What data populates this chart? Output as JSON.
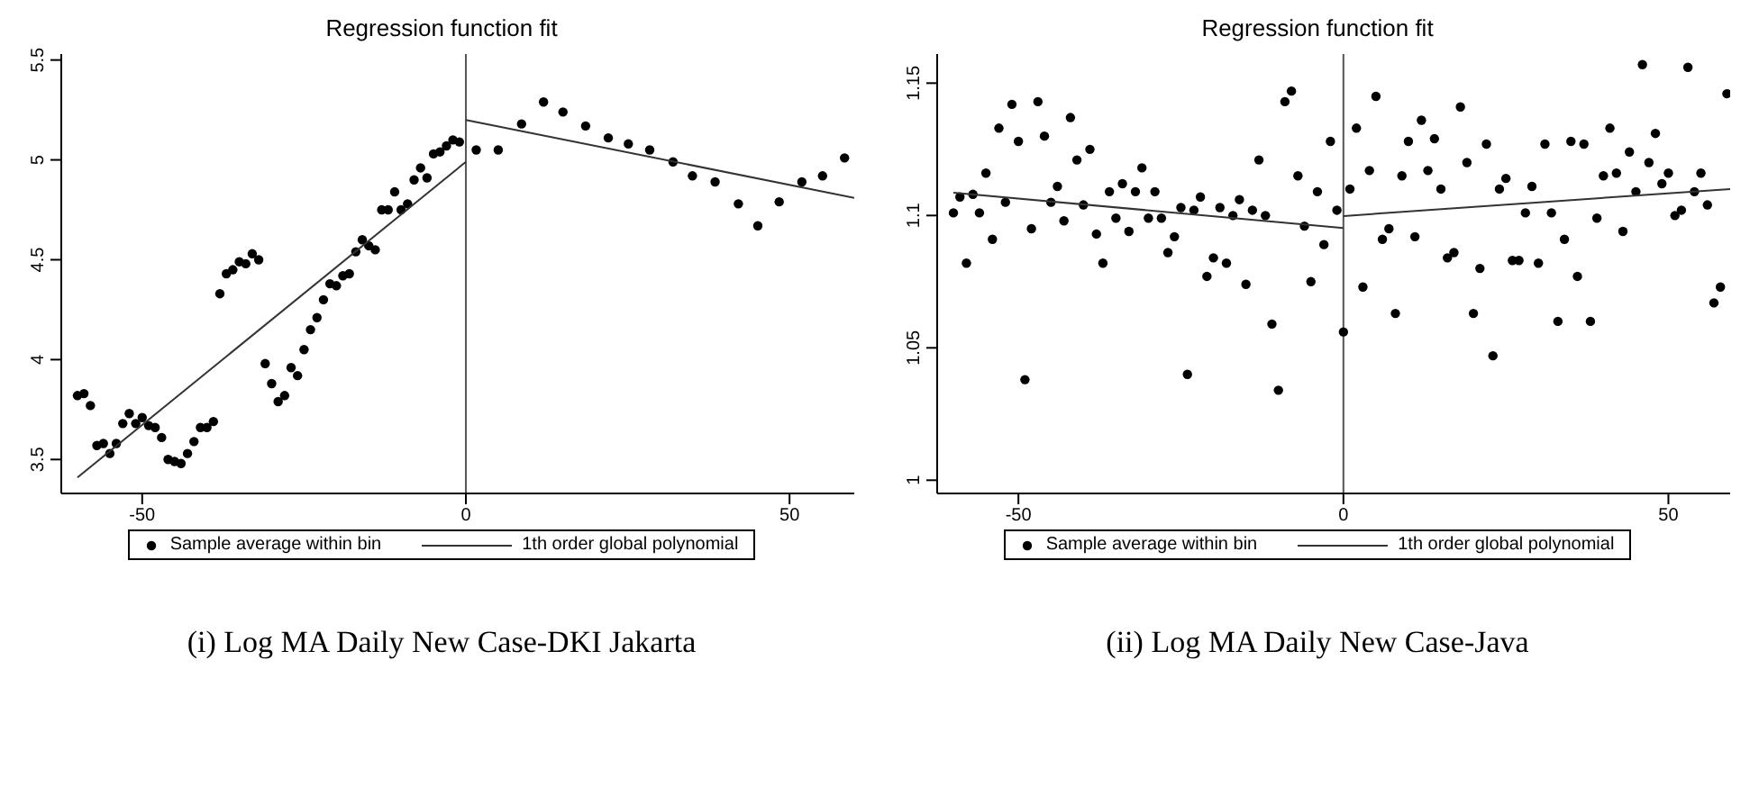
{
  "chart_data": [
    {
      "type": "scatter",
      "title": "Regression function fit",
      "xlim": [
        -62.5,
        60
      ],
      "ylim": [
        3.33,
        5.53
      ],
      "xticks": [
        -50,
        0,
        50
      ],
      "yticks": [
        3.5,
        4,
        4.5,
        5,
        5.5
      ],
      "marker": "circle",
      "legend": "bottom",
      "annotations": [
        "(i) Log MA Daily New Case-DKI Jakarta"
      ],
      "ref_lines": [
        {
          "axis": "x",
          "value": 0,
          "color": "#555555"
        }
      ],
      "series": [
        {
          "name": "Sample average within bin",
          "color": "#000000",
          "x": [
            -60,
            -59,
            -58,
            -57,
            -56,
            -55,
            -54,
            -53,
            -52,
            -51,
            -50,
            -49,
            -48,
            -47,
            -46,
            -45,
            -44,
            -43,
            -42,
            -41,
            -40,
            -39,
            -38,
            -37,
            -36,
            -35,
            -34,
            -33,
            -32,
            -31,
            -30,
            -29,
            -28,
            -27,
            -26,
            -25,
            -24,
            -23,
            -22,
            -21,
            -20,
            -19,
            -18,
            -17,
            -16,
            -15,
            -14,
            -13,
            -12,
            -11,
            -10,
            -9,
            -8,
            -7,
            -6,
            -5,
            -4,
            -3,
            -2,
            -1,
            1.6,
            5.0,
            8.6,
            12.0,
            15.0,
            18.5,
            22.0,
            25.1,
            28.4,
            32.0,
            35.0,
            38.5,
            42.1,
            45.1,
            48.4,
            51.9,
            55.1,
            58.5
          ],
          "values": [
            3.82,
            3.83,
            3.77,
            3.57,
            3.58,
            3.53,
            3.58,
            3.68,
            3.73,
            3.68,
            3.71,
            3.67,
            3.66,
            3.61,
            3.5,
            3.49,
            3.48,
            3.53,
            3.59,
            3.66,
            3.66,
            3.69,
            4.33,
            4.43,
            4.45,
            4.49,
            4.48,
            4.53,
            4.5,
            3.98,
            3.88,
            3.79,
            3.82,
            3.96,
            3.92,
            4.05,
            4.15,
            4.21,
            4.3,
            4.38,
            4.37,
            4.42,
            4.43,
            4.54,
            4.6,
            4.57,
            4.55,
            4.75,
            4.75,
            4.84,
            4.75,
            4.78,
            4.9,
            4.96,
            4.91,
            5.03,
            5.04,
            5.07,
            5.1,
            5.09,
            5.05,
            5.05,
            5.18,
            5.29,
            5.24,
            5.17,
            5.11,
            5.08,
            5.05,
            4.99,
            4.92,
            4.89,
            4.78,
            4.67,
            4.79,
            4.89,
            4.92,
            5.01
          ]
        },
        {
          "name": "1th order global polynomial",
          "type": "line",
          "marker": "none",
          "color": "#333333",
          "x": [
            -60,
            0
          ],
          "values": [
            3.41,
            4.99
          ]
        },
        {
          "type": "line",
          "marker": "none",
          "color": "#333333",
          "x": [
            0,
            60
          ],
          "values": [
            5.2,
            4.81
          ]
        }
      ]
    },
    {
      "type": "scatter",
      "title": "Regression function fit",
      "xlim": [
        -62.5,
        59.5
      ],
      "ylim": [
        0.995,
        1.161
      ],
      "xticks": [
        -50,
        0,
        50
      ],
      "yticks": [
        1,
        1.05,
        1.1,
        1.15
      ],
      "marker": "circle",
      "legend": "bottom",
      "annotations": [
        "(ii) Log MA Daily New Case-Java"
      ],
      "ref_lines": [
        {
          "axis": "x",
          "value": 0,
          "color": "#555555"
        }
      ],
      "series": [
        {
          "name": "Sample average within bin",
          "color": "#000000",
          "x": [
            -60,
            -59,
            -58,
            -57,
            -56,
            -55,
            -54,
            -53,
            -52,
            -51,
            -50,
            -49,
            -48,
            -47,
            -46,
            -45,
            -44,
            -43,
            -42,
            -41,
            -40,
            -39,
            -38,
            -37,
            -36,
            -35,
            -34,
            -33,
            -32,
            -31,
            -30,
            -29,
            -28,
            -27,
            -26,
            -25,
            -24,
            -23,
            -22,
            -21,
            -20,
            -19,
            -18,
            -17,
            -16,
            -15,
            -14,
            -13,
            -12,
            -11,
            -10,
            -9,
            -8,
            -7,
            -6,
            -5,
            -4,
            -3,
            -2,
            -1,
            0,
            1,
            2,
            3,
            4,
            5,
            6,
            7,
            8,
            9,
            10,
            11,
            12,
            13,
            14,
            15,
            16,
            17,
            18,
            19,
            20,
            21,
            22,
            23,
            24,
            25,
            26,
            27,
            28,
            29,
            30,
            31,
            32,
            33,
            34,
            35,
            36,
            37,
            38,
            39,
            40,
            41,
            42,
            43,
            44,
            45,
            46,
            47,
            48,
            49,
            50,
            51,
            52,
            53,
            54,
            55,
            56,
            57,
            58,
            59
          ],
          "values": [
            1.101,
            1.107,
            1.082,
            1.108,
            1.101,
            1.116,
            1.091,
            1.133,
            1.105,
            1.142,
            1.128,
            1.038,
            1.095,
            1.143,
            1.13,
            1.105,
            1.111,
            1.098,
            1.137,
            1.121,
            1.104,
            1.125,
            1.093,
            1.082,
            1.109,
            1.099,
            1.112,
            1.094,
            1.109,
            1.118,
            1.099,
            1.109,
            1.099,
            1.086,
            1.092,
            1.103,
            1.04,
            1.102,
            1.107,
            1.077,
            1.084,
            1.103,
            1.082,
            1.1,
            1.106,
            1.074,
            1.102,
            1.121,
            1.1,
            1.059,
            1.034,
            1.143,
            1.147,
            1.115,
            1.096,
            1.075,
            1.109,
            1.089,
            1.128,
            1.102,
            1.056,
            1.11,
            1.133,
            1.073,
            1.117,
            1.145,
            1.091,
            1.095,
            1.063,
            1.115,
            1.128,
            1.092,
            1.136,
            1.117,
            1.129,
            1.11,
            1.084,
            1.086,
            1.141,
            1.12,
            1.063,
            1.08,
            1.127,
            1.047,
            1.11,
            1.114,
            1.083,
            1.083,
            1.101,
            1.111,
            1.082,
            1.127,
            1.101,
            1.06,
            1.091,
            1.128,
            1.077,
            1.127,
            1.06,
            1.099,
            1.115,
            1.133,
            1.116,
            1.094,
            1.124,
            1.109,
            1.157,
            1.12,
            1.131,
            1.112,
            1.116,
            1.1,
            1.102,
            1.156,
            1.109,
            1.116,
            1.104,
            1.067,
            1.073,
            1.146
          ]
        },
        {
          "name": "1th order global polynomial",
          "type": "line",
          "marker": "none",
          "color": "#333333",
          "x": [
            -60,
            0
          ],
          "values": [
            1.1086,
            1.0953
          ]
        },
        {
          "type": "line",
          "marker": "none",
          "color": "#333333",
          "x": [
            0,
            59.5
          ],
          "values": [
            1.0998,
            1.11
          ]
        }
      ]
    }
  ]
}
